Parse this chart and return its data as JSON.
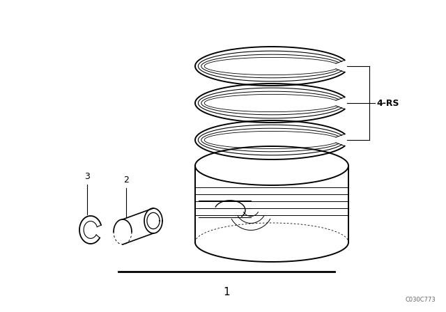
{
  "background_color": "#ffffff",
  "fig_width": 6.4,
  "fig_height": 4.48,
  "dpi": 100,
  "label_4rs": "4-RS",
  "label_1": "1",
  "label_2": "2",
  "label_3": "3",
  "watermark": "C030C773",
  "line_color": "#000000"
}
